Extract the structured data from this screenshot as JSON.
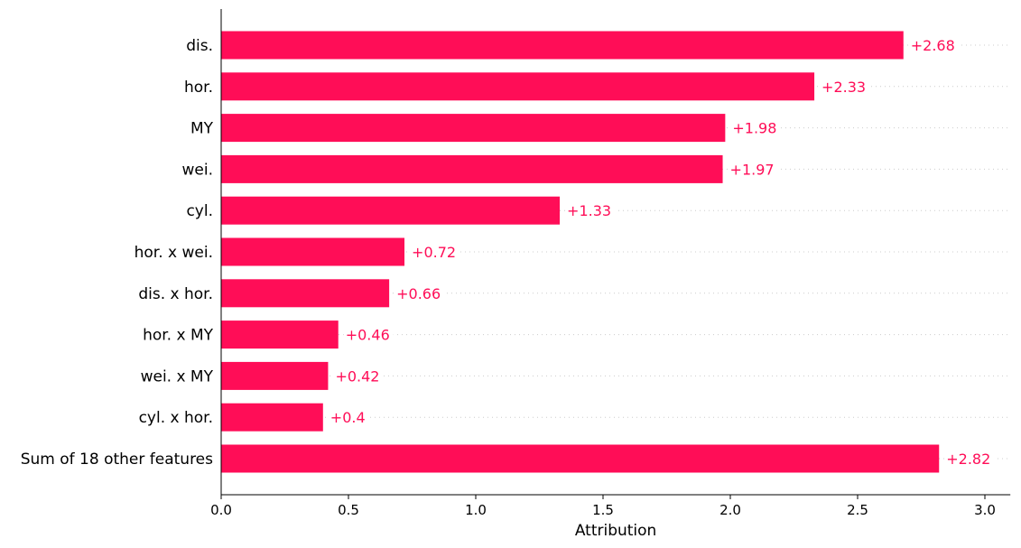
{
  "chart_data": {
    "type": "bar",
    "orientation": "horizontal",
    "categories": [
      "dis.",
      "hor.",
      "MY",
      "wei.",
      "cyl.",
      "hor. x wei.",
      "dis. x hor.",
      "hor. x MY",
      "wei. x MY",
      "cyl. x hor.",
      "Sum of 18 other features"
    ],
    "values": [
      2.68,
      2.33,
      1.98,
      1.97,
      1.33,
      0.72,
      0.66,
      0.46,
      0.42,
      0.4,
      2.82
    ],
    "value_labels": [
      "+2.68",
      "+2.33",
      "+1.98",
      "+1.97",
      "+1.33",
      "+0.72",
      "+0.66",
      "+0.46",
      "+0.42",
      "+0.4",
      "+2.82"
    ],
    "xlabel": "Attribution",
    "ylabel": "",
    "title": "",
    "xlim": [
      0,
      3.1
    ],
    "xticks": [
      0.0,
      0.5,
      1.0,
      1.5,
      2.0,
      2.5,
      3.0
    ],
    "xtick_labels": [
      "0.0",
      "0.5",
      "1.0",
      "1.5",
      "2.0",
      "2.5",
      "3.0"
    ],
    "grid": "dotted horizontal guide lines per bar",
    "colors": {
      "bar": "#ff0d57",
      "value_text": "#ff0d57",
      "axis": "#000000",
      "gridline": "#cccccc"
    }
  }
}
